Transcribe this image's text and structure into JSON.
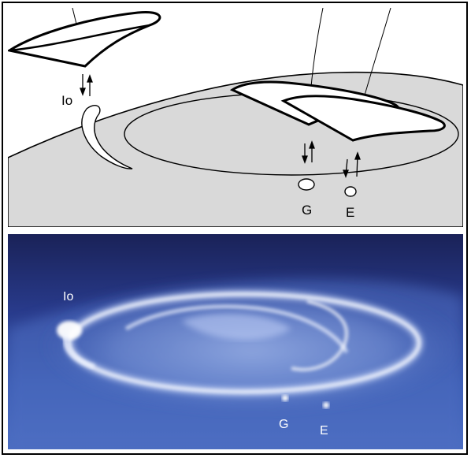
{
  "diagram": {
    "labels": {
      "io": "Io",
      "g": "G",
      "e": "E"
    }
  },
  "photo": {
    "labels": {
      "io": "Io",
      "g": "G",
      "e": "E"
    }
  },
  "colors": {
    "planet_fill": "#d9d9d9",
    "line": "#000000",
    "sky_dark": "#243070",
    "aurora": "#e6f0ff"
  }
}
